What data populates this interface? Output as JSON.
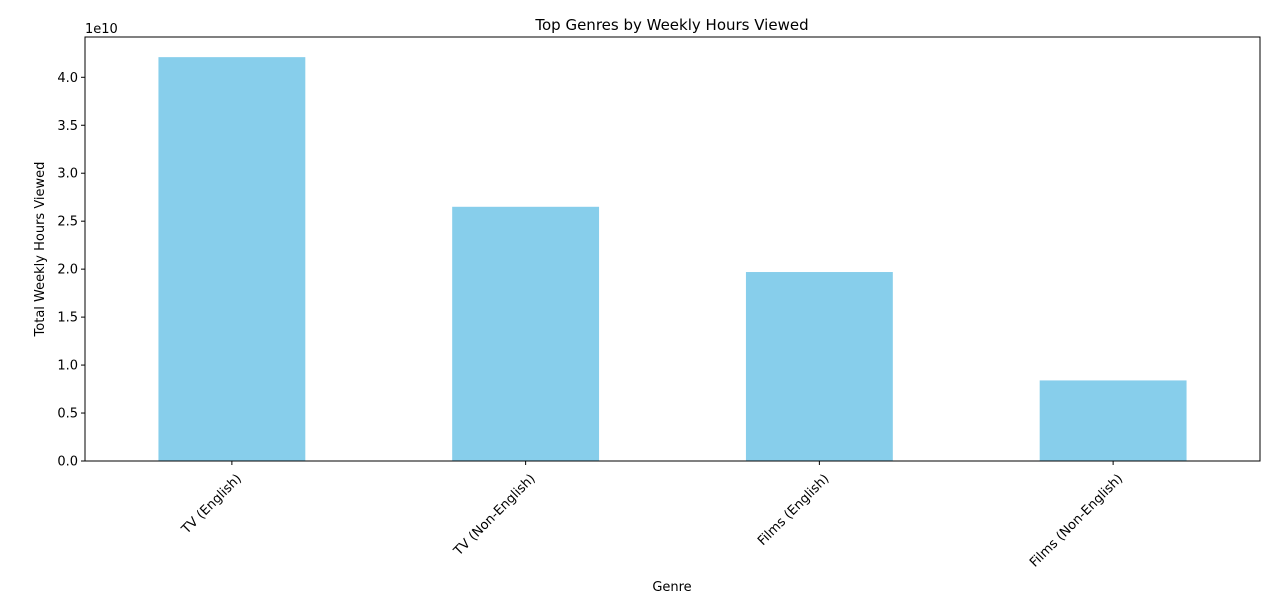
{
  "chart_data": {
    "type": "bar",
    "title": "Top Genres by Weekly Hours Viewed",
    "xlabel": "Genre",
    "ylabel": "Total Weekly Hours Viewed",
    "offset_text": "1e10",
    "categories": [
      "TV (English)",
      "TV (Non-English)",
      "Films (English)",
      "Films (Non-English)"
    ],
    "values": [
      42100000000,
      26500000000,
      19700000000,
      8400000000
    ],
    "ylim": [
      0,
      44200000000
    ],
    "yticks": [
      0,
      5000000000,
      10000000000,
      15000000000,
      20000000000,
      25000000000,
      30000000000,
      35000000000,
      40000000000
    ],
    "ytick_labels": [
      "0.0",
      "0.5",
      "1.0",
      "1.5",
      "2.0",
      "2.5",
      "3.0",
      "3.5",
      "4.0"
    ],
    "bar_color": "#87ceeb",
    "grid": false,
    "legend": "none"
  }
}
